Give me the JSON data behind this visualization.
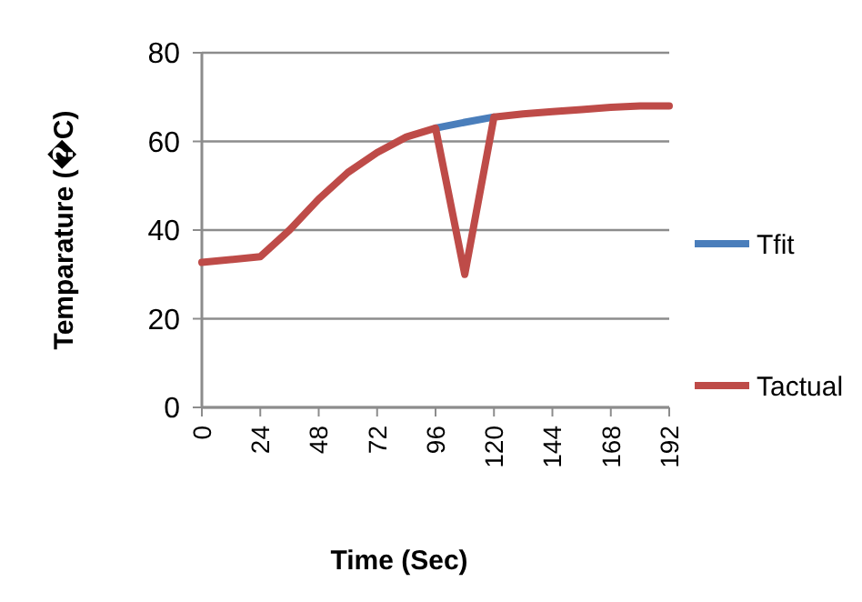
{
  "chart_data": {
    "type": "line",
    "xlabel": "Time (Sec)",
    "ylabel": "Temparature (�C)",
    "x": [
      0,
      24,
      36,
      48,
      60,
      72,
      84,
      96,
      108,
      120,
      132,
      144,
      156,
      168,
      180,
      192
    ],
    "series": [
      {
        "name": "Tfit",
        "color": "#4a7ebb",
        "values": [
          null,
          null,
          null,
          null,
          null,
          null,
          null,
          63,
          64.3,
          65.5,
          null,
          null,
          null,
          null,
          null,
          null
        ]
      },
      {
        "name": "Tactual",
        "color": "#be4b48",
        "values": [
          32.7,
          34,
          40,
          47,
          53,
          57.5,
          61,
          63,
          30,
          65.5,
          66.2,
          66.7,
          67.2,
          67.7,
          68,
          68
        ]
      }
    ],
    "xlim": [
      0,
      192
    ],
    "xticks": [
      0,
      24,
      48,
      72,
      96,
      120,
      144,
      168,
      192
    ],
    "ylim": [
      0,
      80
    ],
    "yticks": [
      0,
      20,
      40,
      60,
      80
    ],
    "grid": "y",
    "legend": "right",
    "marker": "none",
    "line_style": "solid"
  }
}
